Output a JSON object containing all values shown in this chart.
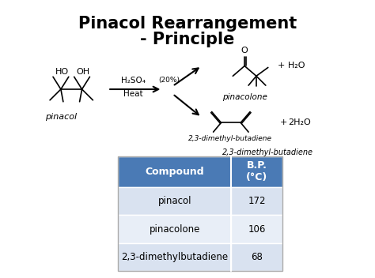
{
  "title_line1": "Pinacol Rearrangement",
  "title_line2": "- Principle",
  "title_fontsize": 15,
  "bg_color": "#ffffff",
  "outer_border": "#cccccc",
  "table_header": [
    "Compound",
    "B.P.\n(°C)"
  ],
  "table_rows": [
    [
      "pinacol",
      "172"
    ],
    [
      "pinacolone",
      "106"
    ],
    [
      "2,3-dimethylbutadiene",
      "68"
    ]
  ],
  "header_bg": "#4a7ab5",
  "header_fg": "#ffffff",
  "row_bg_1": "#d9e2f0",
  "row_bg_2": "#e8eef7",
  "row_bg_3": "#d9e2f0",
  "label_pinacol": "pinacol",
  "label_pinacolone": "pinacolone",
  "label_diene": "2,3-dimethyl-butadiene",
  "label_h2so4": "H₂SO₄",
  "label_20pct": "(20%)",
  "label_heat": "Heat",
  "label_plus_h2o": "+ H₂O",
  "label_plus_2h2o": "2H₂O",
  "label_o": "O",
  "label_ho": "HO",
  "label_oh": "OH"
}
